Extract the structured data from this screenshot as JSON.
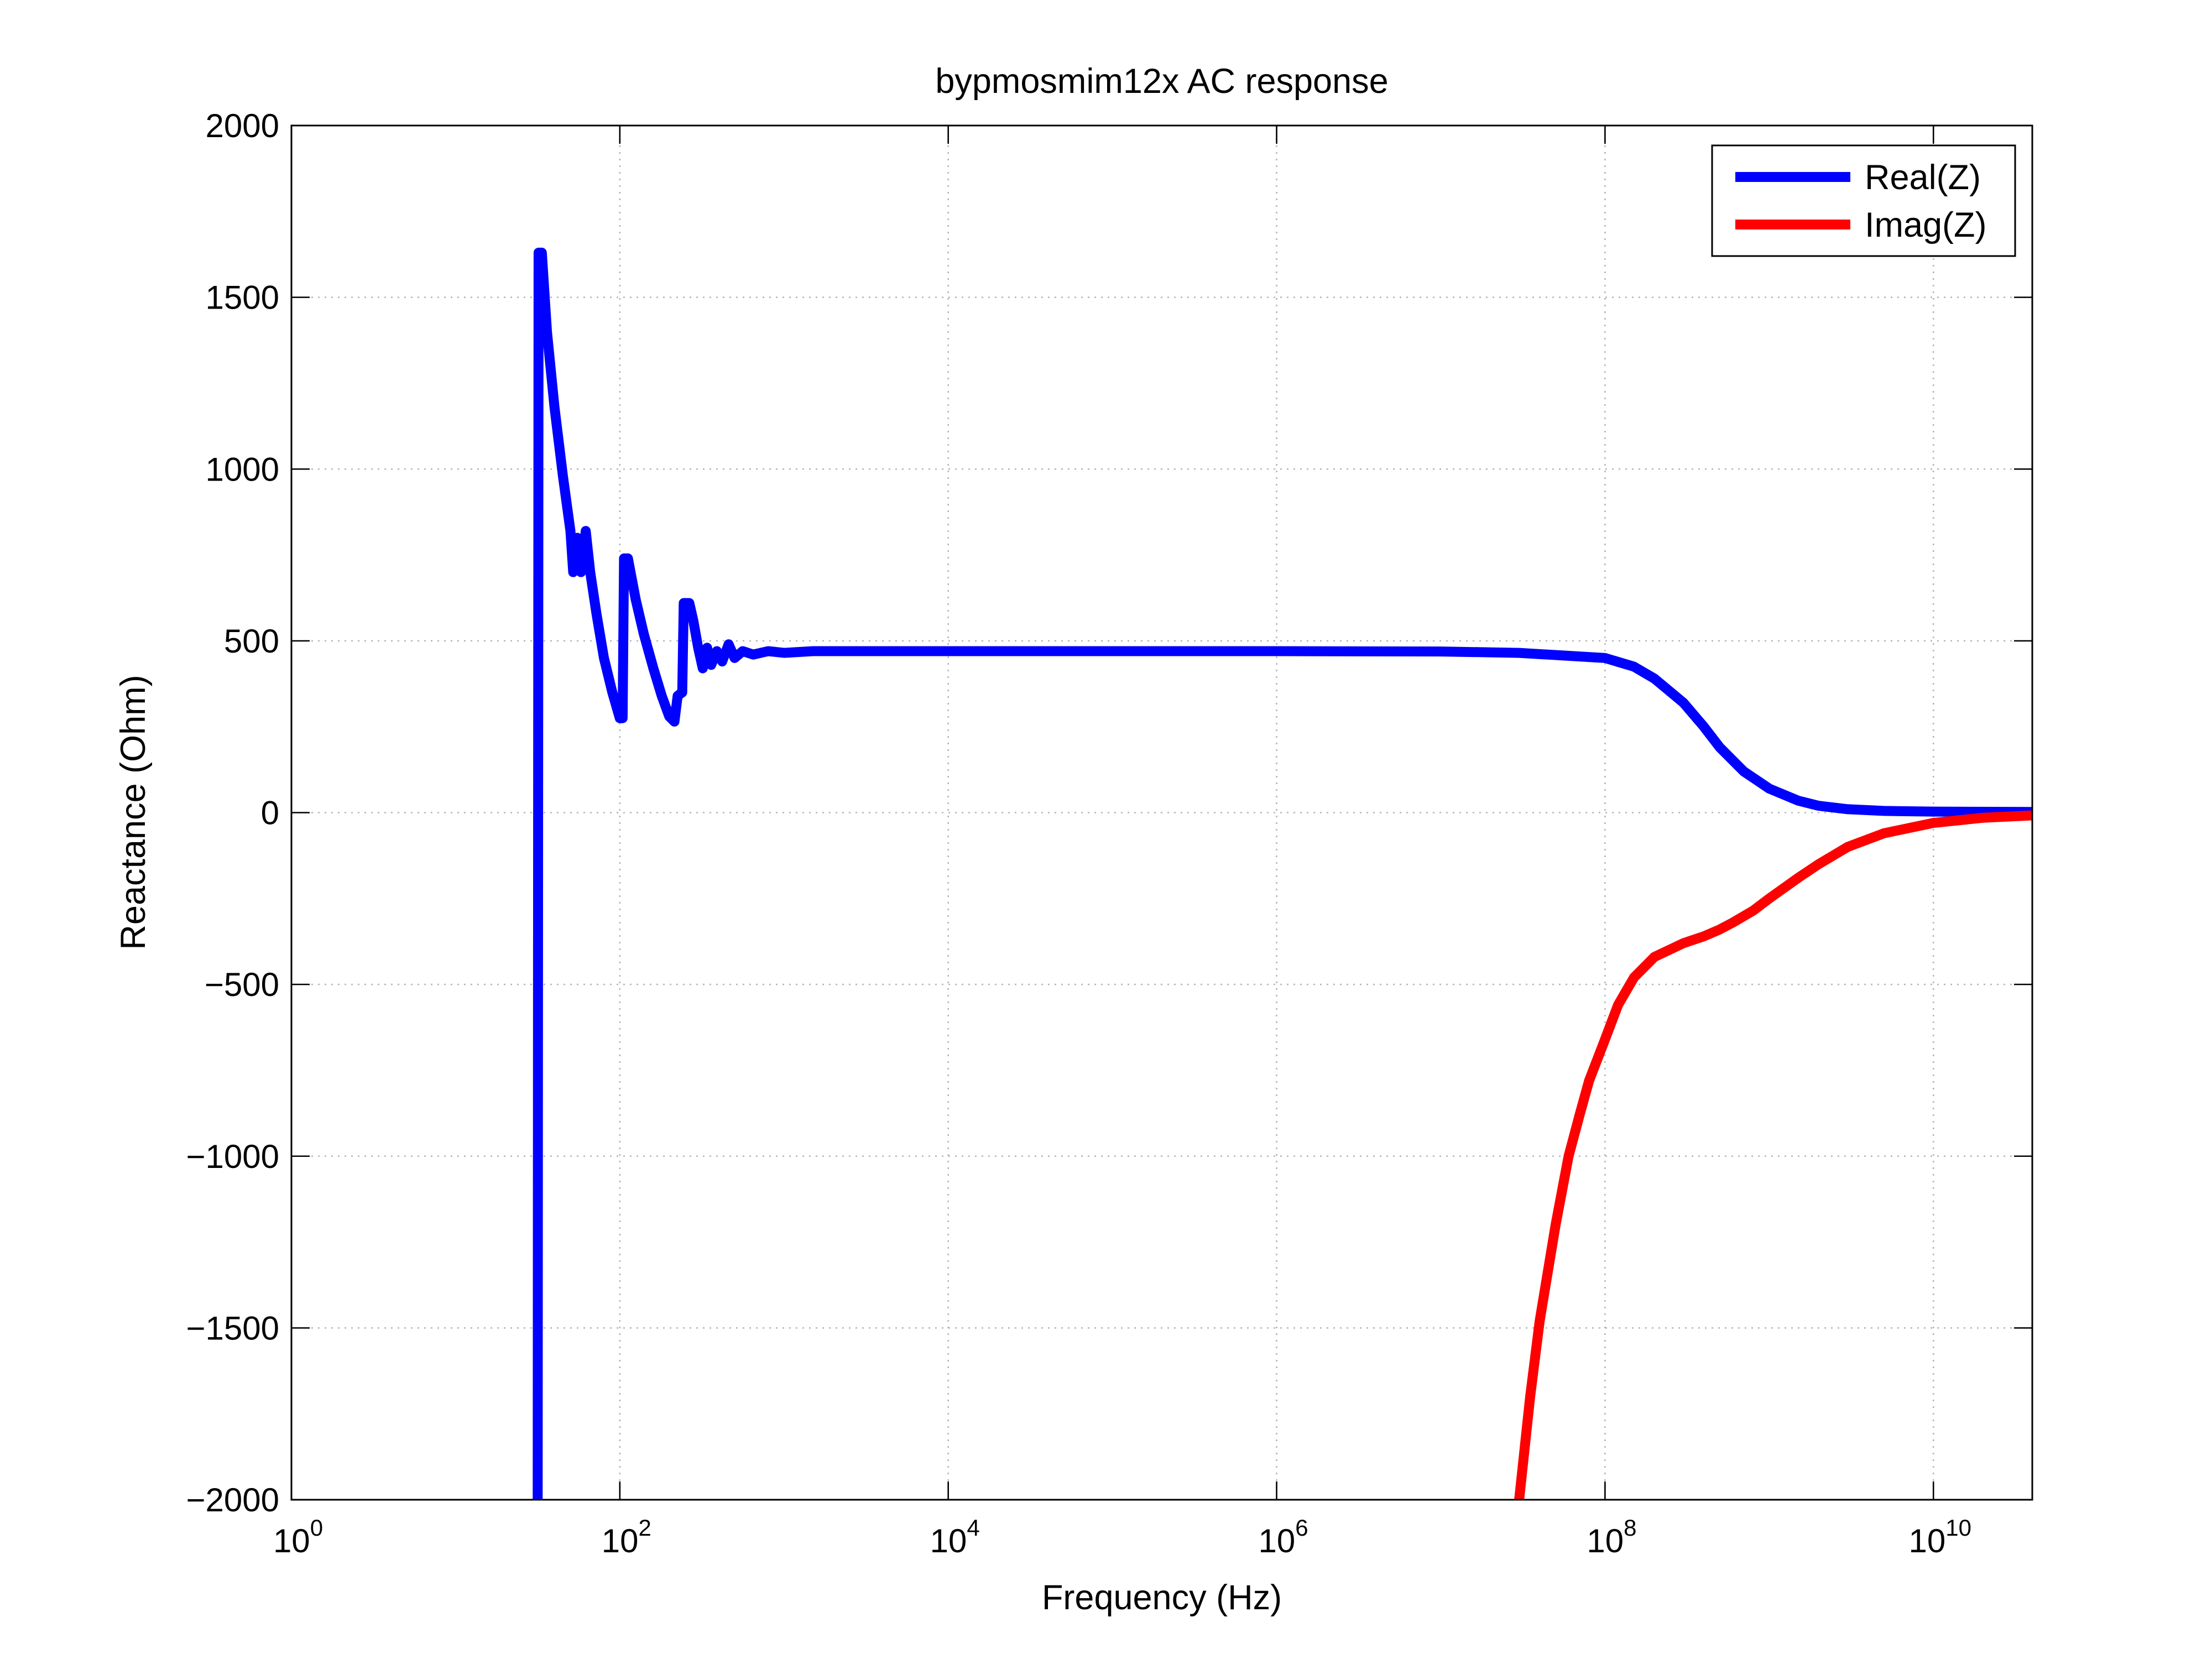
{
  "chart_data": {
    "type": "line",
    "title": "bypmosmim12x AC response",
    "xlabel": "Frequency (Hz)",
    "ylabel": "Reactance (Ohm)",
    "x_scale": "log",
    "xlim": [
      1,
      40000000000
    ],
    "ylim": [
      -2000,
      2000
    ],
    "grid": true,
    "legend_position": "top-right",
    "x_ticks": [
      {
        "base": "10",
        "exp": "0",
        "value": 1
      },
      {
        "base": "10",
        "exp": "2",
        "value": 100
      },
      {
        "base": "10",
        "exp": "4",
        "value": 10000
      },
      {
        "base": "10",
        "exp": "6",
        "value": 1000000
      },
      {
        "base": "10",
        "exp": "8",
        "value": 100000000
      },
      {
        "base": "10",
        "exp": "10",
        "value": 10000000000
      }
    ],
    "y_ticks": [
      {
        "label": "2000",
        "value": 2000
      },
      {
        "label": "1500",
        "value": 1500
      },
      {
        "label": "1000",
        "value": 1000
      },
      {
        "label": "500",
        "value": 500
      },
      {
        "label": "0",
        "value": 0
      },
      {
        "label": "−500",
        "value": -500
      },
      {
        "label": "−1000",
        "value": -1000
      },
      {
        "label": "−1500",
        "value": -1500
      },
      {
        "label": "−2000",
        "value": -2000
      }
    ],
    "series": [
      {
        "name": "Real(Z)",
        "color": "#0000ff",
        "points": [
          [
            31.6,
            -2000
          ],
          [
            31.8,
            0
          ],
          [
            32.0,
            1630
          ],
          [
            33.5,
            1630
          ],
          [
            36,
            1400
          ],
          [
            40,
            1180
          ],
          [
            45,
            980
          ],
          [
            50,
            820
          ],
          [
            52,
            700
          ],
          [
            55,
            800
          ],
          [
            58,
            700
          ],
          [
            62,
            820
          ],
          [
            66,
            700
          ],
          [
            72,
            580
          ],
          [
            80,
            450
          ],
          [
            90,
            350
          ],
          [
            100,
            275
          ],
          [
            104,
            275
          ],
          [
            106,
            740
          ],
          [
            112,
            740
          ],
          [
            125,
            620
          ],
          [
            140,
            520
          ],
          [
            160,
            420
          ],
          [
            180,
            340
          ],
          [
            200,
            280
          ],
          [
            215,
            265
          ],
          [
            225,
            340
          ],
          [
            240,
            350
          ],
          [
            245,
            610
          ],
          [
            265,
            610
          ],
          [
            280,
            560
          ],
          [
            300,
            480
          ],
          [
            320,
            420
          ],
          [
            340,
            480
          ],
          [
            360,
            430
          ],
          [
            390,
            470
          ],
          [
            420,
            440
          ],
          [
            460,
            490
          ],
          [
            500,
            450
          ],
          [
            560,
            470
          ],
          [
            650,
            460
          ],
          [
            800,
            470
          ],
          [
            1000,
            465
          ],
          [
            1500,
            470
          ],
          [
            3000,
            470
          ],
          [
            10000,
            470
          ],
          [
            1000000,
            470
          ],
          [
            10000000,
            469
          ],
          [
            30000000,
            465
          ],
          [
            100000000,
            450
          ],
          [
            150000000,
            425
          ],
          [
            200000000,
            390
          ],
          [
            300000000,
            320
          ],
          [
            400000000,
            250
          ],
          [
            500000000,
            190
          ],
          [
            700000000,
            120
          ],
          [
            1000000000,
            70
          ],
          [
            1500000000,
            35
          ],
          [
            2000000000,
            20
          ],
          [
            3000000000,
            10
          ],
          [
            5000000000,
            5
          ],
          [
            10000000000,
            3
          ],
          [
            40000000000,
            2
          ]
        ]
      },
      {
        "name": "Imag(Z)",
        "color": "#ff0000",
        "points": [
          [
            30000000,
            -2000
          ],
          [
            35000000,
            -1700
          ],
          [
            40000000,
            -1480
          ],
          [
            50000000,
            -1200
          ],
          [
            60000000,
            -1000
          ],
          [
            70000000,
            -880
          ],
          [
            80000000,
            -780
          ],
          [
            100000000,
            -660
          ],
          [
            120000000,
            -560
          ],
          [
            150000000,
            -480
          ],
          [
            200000000,
            -420
          ],
          [
            300000000,
            -380
          ],
          [
            400000000,
            -360
          ],
          [
            500000000,
            -340
          ],
          [
            600000000,
            -320
          ],
          [
            800000000,
            -285
          ],
          [
            1000000000,
            -250
          ],
          [
            1500000000,
            -190
          ],
          [
            2000000000,
            -150
          ],
          [
            3000000000,
            -100
          ],
          [
            5000000000,
            -60
          ],
          [
            10000000000,
            -30
          ],
          [
            20000000000,
            -15
          ],
          [
            40000000000,
            -8
          ]
        ]
      }
    ]
  }
}
